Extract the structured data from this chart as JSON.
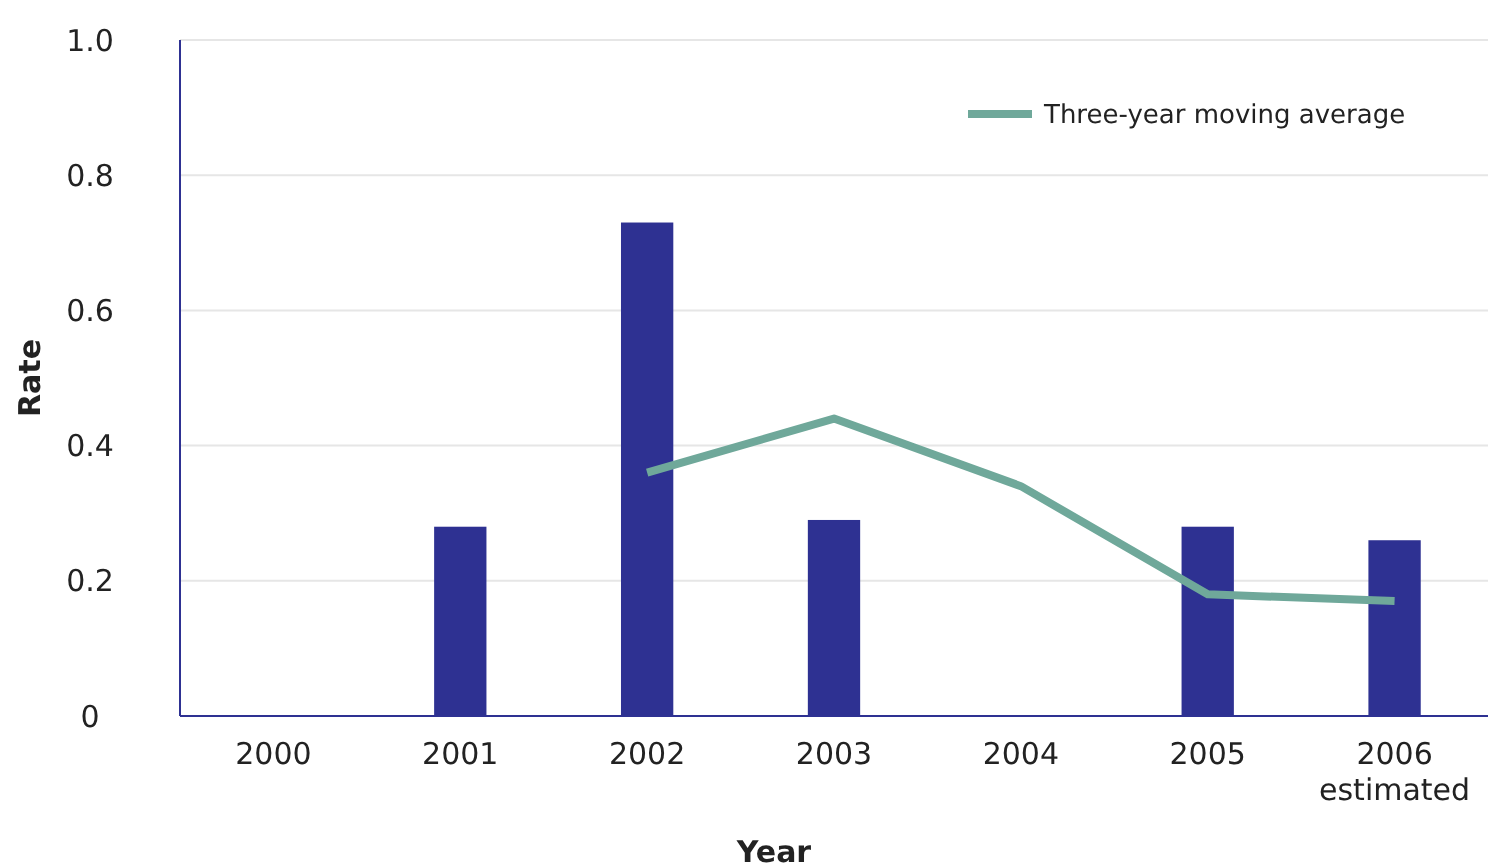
{
  "chart_data": {
    "type": "bar",
    "xlabel": "Year",
    "ylabel": "Rate",
    "categories": [
      "2000",
      "2001",
      "2002",
      "2003",
      "2004",
      "2005",
      "2006\nestimated"
    ],
    "series": [
      {
        "color": "#2e3192",
        "values": [
          null,
          0.28,
          0.73,
          0.29,
          null,
          0.28,
          0.26
        ]
      },
      {
        "type": "line",
        "name": "Three-year moving average",
        "color": "#6fa89a",
        "values": [
          null,
          null,
          0.36,
          0.44,
          0.34,
          0.18,
          0.17
        ]
      }
    ],
    "ylim": [
      0,
      1
    ],
    "yticks": [
      {
        "value": 0,
        "label": "0"
      },
      0.2,
      0.4,
      0.6,
      0.8,
      {
        "value": 1,
        "label": "1.0"
      }
    ],
    "grid": "y",
    "legend": "top right",
    "marker": "none"
  }
}
